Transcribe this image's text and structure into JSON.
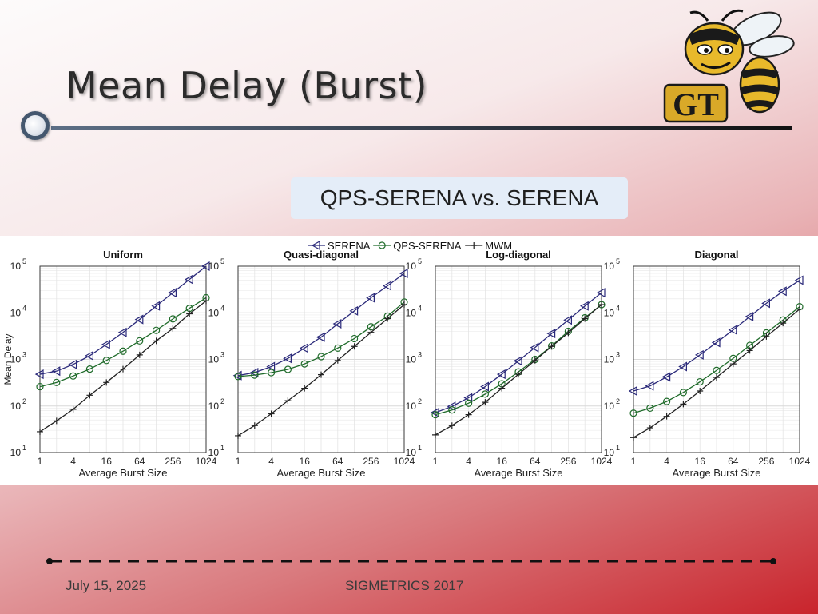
{
  "slide": {
    "title": "Mean Delay (Burst)",
    "subtitle": "QPS-SERENA vs. SERENA",
    "footer_date": "July 15, 2025",
    "footer_conference": "SIGMETRICS 2017",
    "logo_icon": "gt-yellow-jacket-logo-icon",
    "logo_text": "GT"
  },
  "legend": {
    "entries": [
      {
        "name": "SERENA",
        "marker": "triangle-left",
        "color": "#2b2a7a"
      },
      {
        "name": "QPS-SERENA",
        "marker": "circle",
        "color": "#1f6b2a"
      },
      {
        "name": "MWM",
        "marker": "plus",
        "color": "#222222"
      }
    ]
  },
  "chart_data": [
    {
      "type": "line",
      "title": "Uniform",
      "xlabel": "Average Burst Size",
      "ylabel": "Mean Delay",
      "xscale": "log2",
      "yscale": "log10",
      "xlim": [
        1,
        1024
      ],
      "ylim": [
        10,
        100000
      ],
      "xticks": [
        "1",
        "4",
        "16",
        "64",
        "256",
        "1024"
      ],
      "yticks": [
        "10^1",
        "10^2",
        "10^3",
        "10^4",
        "10^5"
      ],
      "x": [
        1,
        2,
        4,
        8,
        16,
        32,
        64,
        128,
        256,
        512,
        1024
      ],
      "series": [
        {
          "name": "SERENA",
          "values": [
            480,
            560,
            780,
            1200,
            2100,
            3800,
            7200,
            14000,
            27000,
            52000,
            100000
          ]
        },
        {
          "name": "QPS-SERENA",
          "values": [
            260,
            320,
            440,
            620,
            950,
            1500,
            2500,
            4200,
            7400,
            12500,
            21000
          ]
        },
        {
          "name": "MWM",
          "values": [
            28,
            48,
            85,
            170,
            320,
            620,
            1250,
            2500,
            4600,
            9500,
            18000
          ]
        }
      ]
    },
    {
      "type": "line",
      "title": "Quasi-diagonal",
      "xlabel": "Average Burst Size",
      "ylabel": "",
      "xscale": "log2",
      "yscale": "log10",
      "xlim": [
        1,
        1024
      ],
      "ylim": [
        10,
        100000
      ],
      "xticks": [
        "1",
        "4",
        "16",
        "64",
        "256",
        "1024"
      ],
      "yticks": [
        "10^1",
        "10^2",
        "10^3",
        "10^4",
        "10^5"
      ],
      "x": [
        1,
        2,
        4,
        8,
        16,
        32,
        64,
        128,
        256,
        512,
        1024
      ],
      "series": [
        {
          "name": "SERENA",
          "values": [
            450,
            520,
            700,
            1050,
            1750,
            3000,
            5800,
            11000,
            21000,
            38000,
            70000
          ]
        },
        {
          "name": "QPS-SERENA",
          "values": [
            430,
            460,
            520,
            610,
            800,
            1150,
            1750,
            2800,
            5000,
            8500,
            17000
          ]
        },
        {
          "name": "MWM",
          "values": [
            23,
            38,
            68,
            130,
            240,
            470,
            950,
            1900,
            3800,
            7500,
            15000
          ]
        }
      ]
    },
    {
      "type": "line",
      "title": "Log-diagonal",
      "xlabel": "Average Burst Size",
      "ylabel": "",
      "xscale": "log2",
      "yscale": "log10",
      "xlim": [
        1,
        1024
      ],
      "ylim": [
        10,
        100000
      ],
      "xticks": [
        "1",
        "4",
        "16",
        "64",
        "256",
        "1024"
      ],
      "yticks": [
        "10^1",
        "10^2",
        "10^3",
        "10^4",
        "10^5"
      ],
      "x": [
        1,
        2,
        4,
        8,
        16,
        32,
        64,
        128,
        256,
        512,
        1024
      ],
      "series": [
        {
          "name": "SERENA",
          "values": [
            72,
            98,
            150,
            260,
            480,
            930,
            1800,
            3600,
            7000,
            14000,
            27000
          ]
        },
        {
          "name": "QPS-SERENA",
          "values": [
            65,
            82,
            115,
            180,
            300,
            540,
            1000,
            1950,
            4000,
            7800,
            15000
          ]
        },
        {
          "name": "MWM",
          "values": [
            24,
            38,
            65,
            120,
            240,
            480,
            950,
            1900,
            3700,
            7500,
            15000
          ]
        }
      ]
    },
    {
      "type": "line",
      "title": "Diagonal",
      "xlabel": "Average Burst Size",
      "ylabel": "",
      "xscale": "log2",
      "yscale": "log10",
      "xlim": [
        1,
        1024
      ],
      "ylim": [
        10,
        100000
      ],
      "xticks": [
        "1",
        "4",
        "16",
        "64",
        "256",
        "1024"
      ],
      "yticks": [
        "10^1",
        "10^2",
        "10^3",
        "10^4",
        "10^5"
      ],
      "x": [
        1,
        2,
        4,
        8,
        16,
        32,
        64,
        128,
        256,
        512,
        1024
      ],
      "series": [
        {
          "name": "SERENA",
          "values": [
            210,
            270,
            420,
            700,
            1250,
            2300,
            4300,
            8300,
            16000,
            29000,
            50000
          ]
        },
        {
          "name": "QPS-SERENA",
          "values": [
            70,
            90,
            125,
            195,
            330,
            580,
            1050,
            2000,
            3700,
            7000,
            13500
          ]
        },
        {
          "name": "MWM",
          "values": [
            21,
            34,
            60,
            110,
            210,
            410,
            800,
            1550,
            3100,
            6000,
            12000
          ]
        }
      ]
    }
  ]
}
